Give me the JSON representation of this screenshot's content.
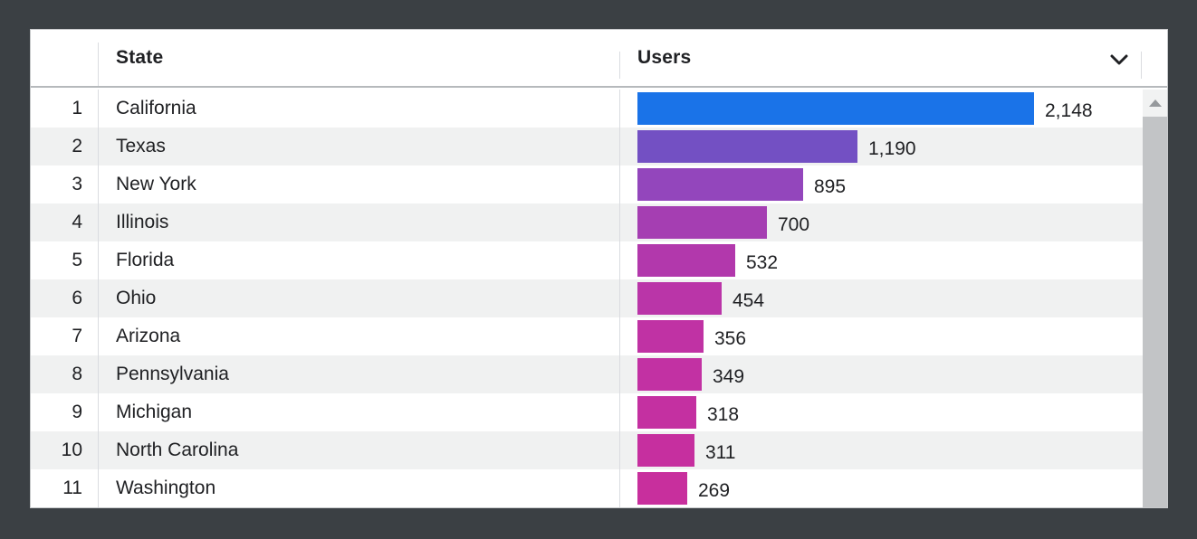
{
  "header": {
    "state_label": "State",
    "users_label": "Users"
  },
  "rows": [
    {
      "rank": "1",
      "state": "California",
      "users_display": "2,148",
      "value": 2148,
      "bar_color": "#1a73e8"
    },
    {
      "rank": "2",
      "state": "Texas",
      "users_display": "1,190",
      "value": 1190,
      "bar_color": "#7350c3"
    },
    {
      "rank": "3",
      "state": "New York",
      "users_display": "895",
      "value": 895,
      "bar_color": "#9346bc"
    },
    {
      "rank": "4",
      "state": "Illinois",
      "users_display": "700",
      "value": 700,
      "bar_color": "#a53eb2"
    },
    {
      "rank": "5",
      "state": "Florida",
      "users_display": "532",
      "value": 532,
      "bar_color": "#b238ac"
    },
    {
      "rank": "6",
      "state": "Ohio",
      "users_display": "454",
      "value": 454,
      "bar_color": "#ba35a8"
    },
    {
      "rank": "7",
      "state": "Arizona",
      "users_display": "356",
      "value": 356,
      "bar_color": "#c032a4"
    },
    {
      "rank": "8",
      "state": "Pennsylvania",
      "users_display": "349",
      "value": 349,
      "bar_color": "#c231a3"
    },
    {
      "rank": "9",
      "state": "Michigan",
      "users_display": "318",
      "value": 318,
      "bar_color": "#c430a1"
    },
    {
      "rank": "10",
      "state": "North Carolina",
      "users_display": "311",
      "value": 311,
      "bar_color": "#c62f9f"
    },
    {
      "rank": "11",
      "state": "Washington",
      "users_display": "269",
      "value": 269,
      "bar_color": "#c82f9d"
    }
  ],
  "max_value": 2148,
  "colors": {
    "page_background": "#3b4044",
    "row_stripe": "#f0f1f1",
    "text": "#202124",
    "divider": "#dadce0",
    "header_border": "#b6b9bc",
    "scroll_thumb": "#c2c4c6",
    "scroll_track": "#f1f2f2",
    "top_bar_blue": "#1a73e8"
  },
  "chart_data": {
    "type": "bar",
    "orientation": "horizontal",
    "title": "",
    "xlabel": "Users",
    "ylabel": "State",
    "categories": [
      "California",
      "Texas",
      "New York",
      "Illinois",
      "Florida",
      "Ohio",
      "Arizona",
      "Pennsylvania",
      "Michigan",
      "North Carolina",
      "Washington"
    ],
    "values": [
      2148,
      1190,
      895,
      700,
      532,
      454,
      356,
      349,
      318,
      311,
      269
    ],
    "value_labels": [
      "2,148",
      "1,190",
      "895",
      "700",
      "532",
      "454",
      "356",
      "349",
      "318",
      "311",
      "269"
    ],
    "bar_colors": [
      "#1a73e8",
      "#7350c3",
      "#9346bc",
      "#a53eb2",
      "#b238ac",
      "#ba35a8",
      "#c032a4",
      "#c231a3",
      "#c430a1",
      "#c62f9f",
      "#c82f9d"
    ],
    "xlim": [
      0,
      2148
    ],
    "grid": false,
    "legend": false,
    "note": "bar length proportional to value; colors fade blue to magenta with rank"
  }
}
